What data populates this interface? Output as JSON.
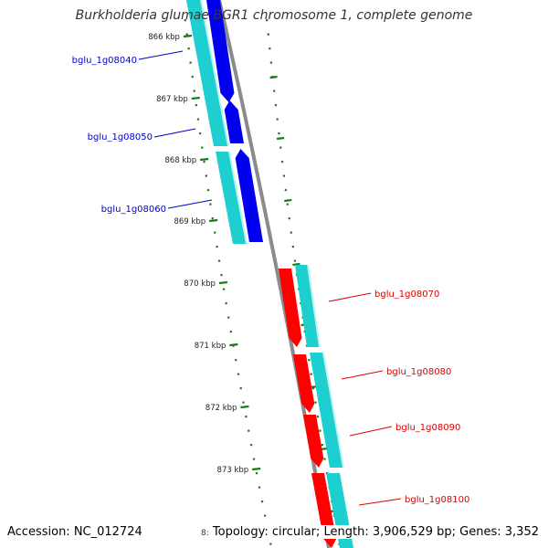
{
  "title": "Burkholderia glumae BGR1 chromosome 1, complete genome",
  "footer": {
    "accession": "Accession: NC_012724",
    "truncated_label": "8:",
    "summary": "Topology: circular; Length: 3,906,529 bp; Genes: 3,352"
  },
  "colors": {
    "forward_gene": "#0000ee",
    "reverse_gene": "#ff0000",
    "cds_band": "#1ecfcf",
    "tick": "#1a7a1a",
    "backbone": "#8a8a8a",
    "forward_label": "#0000cc",
    "reverse_label": "#dd0000"
  },
  "ruler": {
    "unit": "kbp",
    "ticks": [
      "866 kbp",
      "867 kbp",
      "868 kbp",
      "869 kbp",
      "870 kbp",
      "871 kbp",
      "872 kbp",
      "873 kbp"
    ]
  },
  "genes": [
    {
      "name": "bglu_1g08040",
      "strand": "forward"
    },
    {
      "name": "bglu_1g08050",
      "strand": "forward"
    },
    {
      "name": "bglu_1g08060",
      "strand": "forward"
    },
    {
      "name": "bglu_1g08070",
      "strand": "reverse"
    },
    {
      "name": "bglu_1g08080",
      "strand": "reverse"
    },
    {
      "name": "bglu_1g08090",
      "strand": "reverse"
    },
    {
      "name": "bglu_1g08100",
      "strand": "reverse"
    }
  ]
}
